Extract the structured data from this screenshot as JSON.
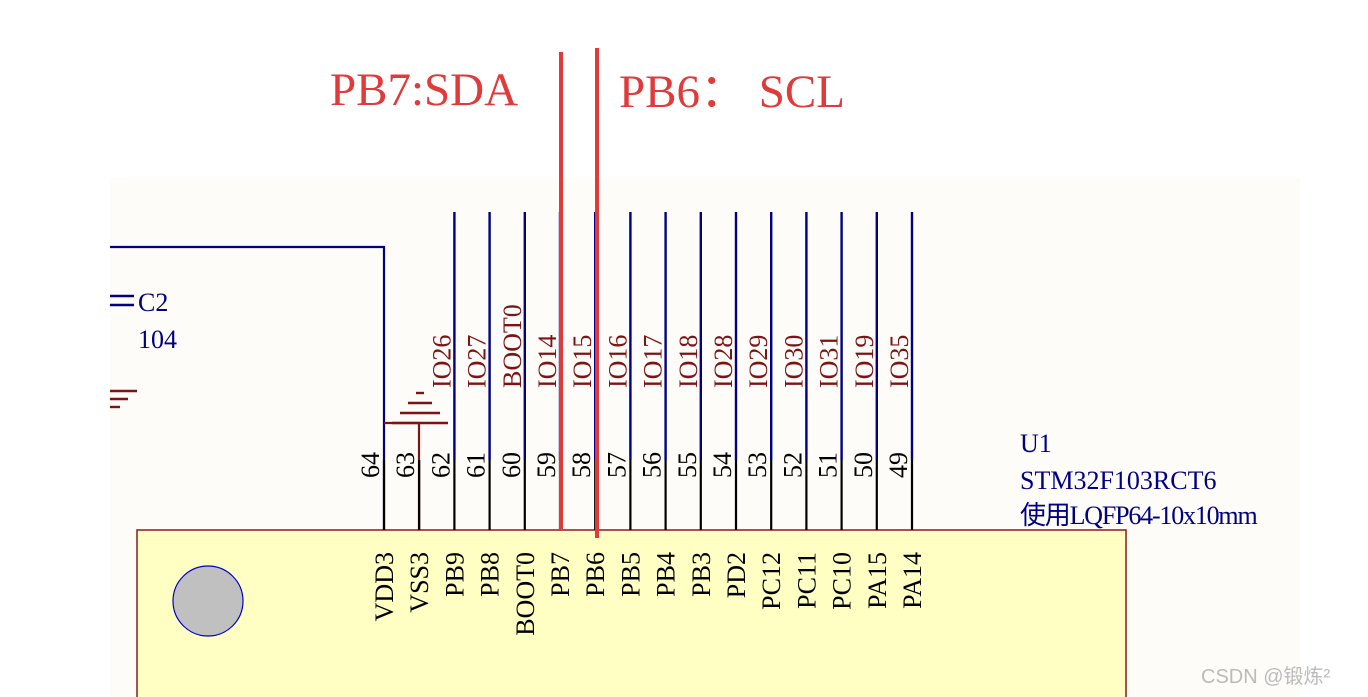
{
  "colors": {
    "sheet": "#fdfcf8",
    "wire": "#000080",
    "net_label": "#7b1414",
    "chip_fill": "#ffffc4",
    "chip_border": "#8b1a1a",
    "pin": "#000000",
    "annotation": "#e03a3a",
    "dot_fill": "#c0c0c0",
    "dot_stroke": "#0000cc",
    "watermark": "#bbbbbb"
  },
  "annotations": {
    "left": "PB7:SDA",
    "right": "PB6： SCL"
  },
  "capacitor": {
    "designator": "C2",
    "value": "104"
  },
  "component": {
    "designator": "U1",
    "part": "STM32F103RCT6",
    "footprint": "使用LQFP64-10x10mm"
  },
  "pins": [
    {
      "number": "64",
      "name": "VDD3",
      "net": ""
    },
    {
      "number": "63",
      "name": "VSS3",
      "net": ""
    },
    {
      "number": "62",
      "name": "PB9",
      "net": "IO26"
    },
    {
      "number": "61",
      "name": "PB8",
      "net": "IO27"
    },
    {
      "number": "60",
      "name": "BOOT0",
      "net": "BOOT0"
    },
    {
      "number": "59",
      "name": "PB7",
      "net": "IO14"
    },
    {
      "number": "58",
      "name": "PB6",
      "net": "IO15"
    },
    {
      "number": "57",
      "name": "PB5",
      "net": "IO16"
    },
    {
      "number": "56",
      "name": "PB4",
      "net": "IO17"
    },
    {
      "number": "55",
      "name": "PB3",
      "net": "IO18"
    },
    {
      "number": "54",
      "name": "PD2",
      "net": "IO28"
    },
    {
      "number": "53",
      "name": "PC12",
      "net": "IO29"
    },
    {
      "number": "52",
      "name": "PC11",
      "net": "IO30"
    },
    {
      "number": "51",
      "name": "PC10",
      "net": "IO31"
    },
    {
      "number": "50",
      "name": "PA15",
      "net": "IO19"
    },
    {
      "number": "49",
      "name": "PA14",
      "net": "IO35"
    }
  ],
  "watermark": "CSDN @锻炼²"
}
